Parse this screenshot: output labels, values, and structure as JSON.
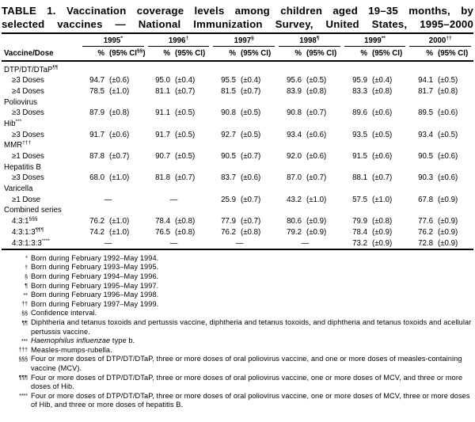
{
  "title": {
    "line1": "TABLE 1. Vaccination coverage levels among children aged 19–35 months, by",
    "line2": "selected vaccines — National Immunization Survey, United States, 1995–2000"
  },
  "table": {
    "row_header": "Vaccine/Dose",
    "years": [
      {
        "label": "1995",
        "sup": "*",
        "pct": "%",
        "ci_prefix": "(95% CI",
        "ci_sup": "§§",
        "ci_suffix": ")"
      },
      {
        "label": "1996",
        "sup": "†",
        "pct": "%",
        "ci_prefix": "(95% CI",
        "ci_sup": "",
        "ci_suffix": ")"
      },
      {
        "label": "1997",
        "sup": "§",
        "pct": "%",
        "ci_prefix": "(95% CI",
        "ci_sup": "",
        "ci_suffix": ")"
      },
      {
        "label": "1998",
        "sup": "¶",
        "pct": "%",
        "ci_prefix": "(95% CI",
        "ci_sup": "",
        "ci_suffix": ")"
      },
      {
        "label": "1999",
        "sup": "**",
        "pct": "%",
        "ci_prefix": "(95% CI",
        "ci_sup": "",
        "ci_suffix": ")"
      },
      {
        "label": "2000",
        "sup": "††",
        "pct": "%",
        "ci_prefix": "(95% CI",
        "ci_sup": "",
        "ci_suffix": ")"
      }
    ],
    "rows": [
      {
        "type": "group",
        "label": "DTP/DT/DTaP",
        "sup": "¶¶"
      },
      {
        "type": "data",
        "label": "≥3 Doses",
        "sup": "",
        "cells": [
          [
            "94.7",
            "(±0.6)"
          ],
          [
            "95.0",
            "(±0.4)"
          ],
          [
            "95.5",
            "(±0.4)"
          ],
          [
            "95.6",
            "(±0.5)"
          ],
          [
            "95.9",
            "(±0.4)"
          ],
          [
            "94.1",
            "(±0.5)"
          ]
        ]
      },
      {
        "type": "data",
        "label": "≥4 Doses",
        "sup": "",
        "cells": [
          [
            "78.5",
            "(±1.0)"
          ],
          [
            "81.1",
            "(±0.7)"
          ],
          [
            "81.5",
            "(±0.7)"
          ],
          [
            "83.9",
            "(±0.8)"
          ],
          [
            "83.3",
            "(±0.8)"
          ],
          [
            "81.7",
            "(±0.8)"
          ]
        ]
      },
      {
        "type": "group",
        "label": "Poliovirus",
        "sup": ""
      },
      {
        "type": "data",
        "label": "≥3 Doses",
        "sup": "",
        "cells": [
          [
            "87.9",
            "(±0.8)"
          ],
          [
            "91.1",
            "(±0.5)"
          ],
          [
            "90.8",
            "(±0.5)"
          ],
          [
            "90.8",
            "(±0.7)"
          ],
          [
            "89.6",
            "(±0.6)"
          ],
          [
            "89.5",
            "(±0.6)"
          ]
        ]
      },
      {
        "type": "group",
        "label": "Hib",
        "sup": "***"
      },
      {
        "type": "data",
        "label": "≥3 Doses",
        "sup": "",
        "cells": [
          [
            "91.7",
            "(±0.6)"
          ],
          [
            "91.7",
            "(±0.5)"
          ],
          [
            "92.7",
            "(±0.5)"
          ],
          [
            "93.4",
            "(±0.6)"
          ],
          [
            "93.5",
            "(±0.5)"
          ],
          [
            "93.4",
            "(±0.5)"
          ]
        ]
      },
      {
        "type": "group",
        "label": "MMR",
        "sup": "†††"
      },
      {
        "type": "data",
        "label": "≥1 Doses",
        "sup": "",
        "cells": [
          [
            "87.8",
            "(±0.7)"
          ],
          [
            "90.7",
            "(±0.5)"
          ],
          [
            "90.5",
            "(±0.7)"
          ],
          [
            "92.0",
            "(±0.6)"
          ],
          [
            "91.5",
            "(±0.6)"
          ],
          [
            "90.5",
            "(±0.6)"
          ]
        ]
      },
      {
        "type": "group",
        "label": "Hepatitis B",
        "sup": ""
      },
      {
        "type": "data",
        "label": "≥3 Doses",
        "sup": "",
        "cells": [
          [
            "68.0",
            "(±1.0)"
          ],
          [
            "81.8",
            "(±0.7)"
          ],
          [
            "83.7",
            "(±0.6)"
          ],
          [
            "87.0",
            "(±0.7)"
          ],
          [
            "88.1",
            "(±0.7)"
          ],
          [
            "90.3",
            "(±0.6)"
          ]
        ]
      },
      {
        "type": "group",
        "label": "Varicella",
        "sup": ""
      },
      {
        "type": "data",
        "label": "≥1 Dose",
        "sup": "",
        "cells": [
          [
            "—",
            ""
          ],
          [
            "—",
            ""
          ],
          [
            "25.9",
            "(±0.7)"
          ],
          [
            "43.2",
            "(±1.0)"
          ],
          [
            "57.5",
            "(±1.0)"
          ],
          [
            "67.8",
            "(±0.9)"
          ]
        ]
      },
      {
        "type": "group",
        "label": "Combined series",
        "sup": ""
      },
      {
        "type": "data",
        "label": "4:3:1",
        "sup": "§§§",
        "cells": [
          [
            "76.2",
            "(±1.0)"
          ],
          [
            "78.4",
            "(±0.8)"
          ],
          [
            "77.9",
            "(±0.7)"
          ],
          [
            "80.6",
            "(±0.9)"
          ],
          [
            "79.9",
            "(±0.8)"
          ],
          [
            "77.6",
            "(±0.9)"
          ]
        ]
      },
      {
        "type": "data",
        "label": "4:3:1:3",
        "sup": "¶¶¶",
        "cells": [
          [
            "74.2",
            "(±1.0)"
          ],
          [
            "76.5",
            "(±0.8)"
          ],
          [
            "76.2",
            "(±0.8)"
          ],
          [
            "79.2",
            "(±0.9)"
          ],
          [
            "78.4",
            "(±0.9)"
          ],
          [
            "76.2",
            "(±0.9)"
          ]
        ]
      },
      {
        "type": "data",
        "label": "4:3:1:3:3",
        "sup": "****",
        "cells": [
          [
            "—",
            ""
          ],
          [
            "—",
            ""
          ],
          [
            "—",
            ""
          ],
          [
            "—",
            ""
          ],
          [
            "73.2",
            "(±0.9)"
          ],
          [
            "72.8",
            "(±0.9)"
          ]
        ]
      }
    ]
  },
  "footnotes": [
    {
      "sym": "*",
      "parts": [
        {
          "text": "Born during February 1992–May 1994."
        }
      ]
    },
    {
      "sym": "†",
      "parts": [
        {
          "text": "Born during February 1993–May 1995."
        }
      ]
    },
    {
      "sym": "§",
      "parts": [
        {
          "text": "Born during February 1994–May 1996."
        }
      ]
    },
    {
      "sym": "¶",
      "parts": [
        {
          "text": "Born during February 1995–May 1997."
        }
      ]
    },
    {
      "sym": "**",
      "parts": [
        {
          "text": "Born during February 1996–May 1998."
        }
      ]
    },
    {
      "sym": "††",
      "parts": [
        {
          "text": "Born during February 1997–May 1999."
        }
      ]
    },
    {
      "sym": "§§",
      "parts": [
        {
          "text": "Confidence interval."
        }
      ]
    },
    {
      "sym": "¶¶",
      "parts": [
        {
          "text": "Diphtheria and tetanus toxoids and pertussis vaccine, diphtheria and tetanus toxoids, and diphtheria and tetanus toxoids and acellular pertussis vaccine."
        }
      ]
    },
    {
      "sym": "***",
      "parts": [
        {
          "text": "Haemophilus influenzae",
          "italic": true
        },
        {
          "text": " type b."
        }
      ]
    },
    {
      "sym": "†††",
      "parts": [
        {
          "text": "Measles-mumps-rubella."
        }
      ]
    },
    {
      "sym": "§§§",
      "parts": [
        {
          "text": "Four or more doses of DTP/DT/DTaP, three or more doses of oral poliovirus vaccine, and one or more doses of measles-containing vaccine (MCV)."
        }
      ]
    },
    {
      "sym": "¶¶¶",
      "parts": [
        {
          "text": "Four or more doses of DTP/DT/DTaP, three or more doses of oral poliovirus vaccine, one or more doses of MCV, and three or more doses of Hib."
        }
      ]
    },
    {
      "sym": "****",
      "parts": [
        {
          "text": "Four or more doses of DTP/DT/DTaP, three or more doses of oral poliovirus vaccine, one or more doses of MCV, three or more doses of Hib, and three or more doses of hepatitis B."
        }
      ]
    }
  ]
}
